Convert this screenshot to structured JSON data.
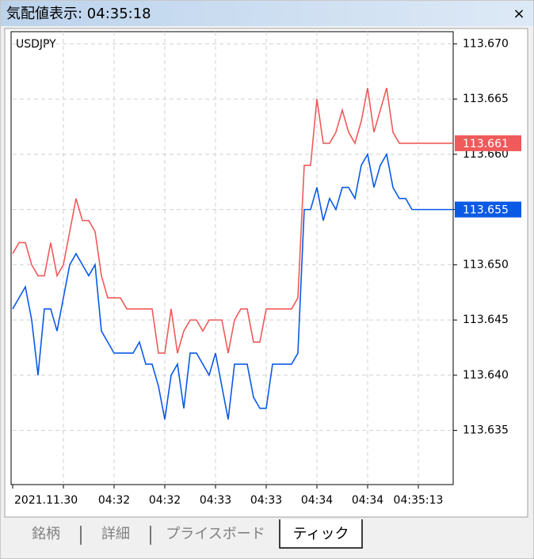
{
  "window": {
    "title": "気配値表示: 04:35:18",
    "close": "×"
  },
  "chart_data": {
    "type": "line",
    "title": "USDJPY",
    "categories": [
      "2021.11.30",
      null,
      null,
      null,
      null,
      null,
      null,
      null,
      null,
      null,
      null,
      null,
      null,
      null,
      null,
      null,
      "04:32",
      null,
      null,
      null,
      null,
      null,
      null,
      null,
      "04:32",
      null,
      null,
      null,
      null,
      null,
      null,
      null,
      "04:33",
      null,
      null,
      null,
      null,
      null,
      null,
      null,
      "04:33",
      null,
      null,
      null,
      null,
      null,
      null,
      null,
      "04:34",
      null,
      null,
      null,
      null,
      null,
      null,
      null,
      "04:34",
      null,
      null,
      null,
      null,
      null,
      null,
      null,
      "04:35:13"
    ],
    "series": [
      {
        "color": "#f05a5a",
        "values": [
          113.651,
          113.652,
          113.652,
          113.65,
          113.649,
          113.649,
          113.652,
          113.649,
          113.65,
          113.653,
          113.656,
          113.654,
          113.654,
          113.653,
          113.649,
          113.647,
          113.647,
          113.647,
          113.646,
          113.646,
          113.646,
          113.646,
          113.646,
          113.642,
          113.642,
          113.646,
          113.642,
          113.644,
          113.645,
          113.645,
          113.644,
          113.645,
          113.645,
          113.645,
          113.642,
          113.645,
          113.646,
          113.646,
          113.643,
          113.643,
          113.646,
          113.646,
          113.646,
          113.646,
          113.646,
          113.647,
          113.659,
          113.659,
          113.665,
          113.661,
          113.661,
          113.662,
          113.664,
          113.662,
          113.661,
          113.663,
          113.666,
          113.662,
          113.664,
          113.666,
          113.662,
          113.661,
          113.661,
          113.661,
          113.661
        ]
      },
      {
        "color": "#0a5ae6",
        "values": [
          113.646,
          113.647,
          113.648,
          113.645,
          113.64,
          113.646,
          113.646,
          113.644,
          113.647,
          113.65,
          113.651,
          113.65,
          113.649,
          113.65,
          113.644,
          113.643,
          113.642,
          113.642,
          113.642,
          113.642,
          113.643,
          113.641,
          113.641,
          113.639,
          113.636,
          113.64,
          113.641,
          113.637,
          113.642,
          113.642,
          113.641,
          113.64,
          113.642,
          113.639,
          113.636,
          113.641,
          113.641,
          113.641,
          113.638,
          113.637,
          113.637,
          113.641,
          113.641,
          113.641,
          113.641,
          113.642,
          113.655,
          113.655,
          113.657,
          113.654,
          113.656,
          113.655,
          113.657,
          113.657,
          113.656,
          113.659,
          113.66,
          113.657,
          113.659,
          113.66,
          113.657,
          113.656,
          113.656,
          113.655,
          113.655
        ]
      }
    ],
    "ylim": [
      113.6301,
      113.6711
    ],
    "yticks": [
      {
        "value": 113.67,
        "label": "113.670"
      },
      113.665,
      {
        "value": 113.66,
        "label": "113.660"
      },
      113.655,
      {
        "value": 113.65,
        "label": "113.650"
      },
      113.645,
      {
        "value": 113.64,
        "label": "113.640"
      },
      113.635
    ],
    "grid": true
  },
  "tabs": [
    "銘柄",
    "詳細",
    "プライスボード",
    "ティック"
  ],
  "active_tab": 3
}
